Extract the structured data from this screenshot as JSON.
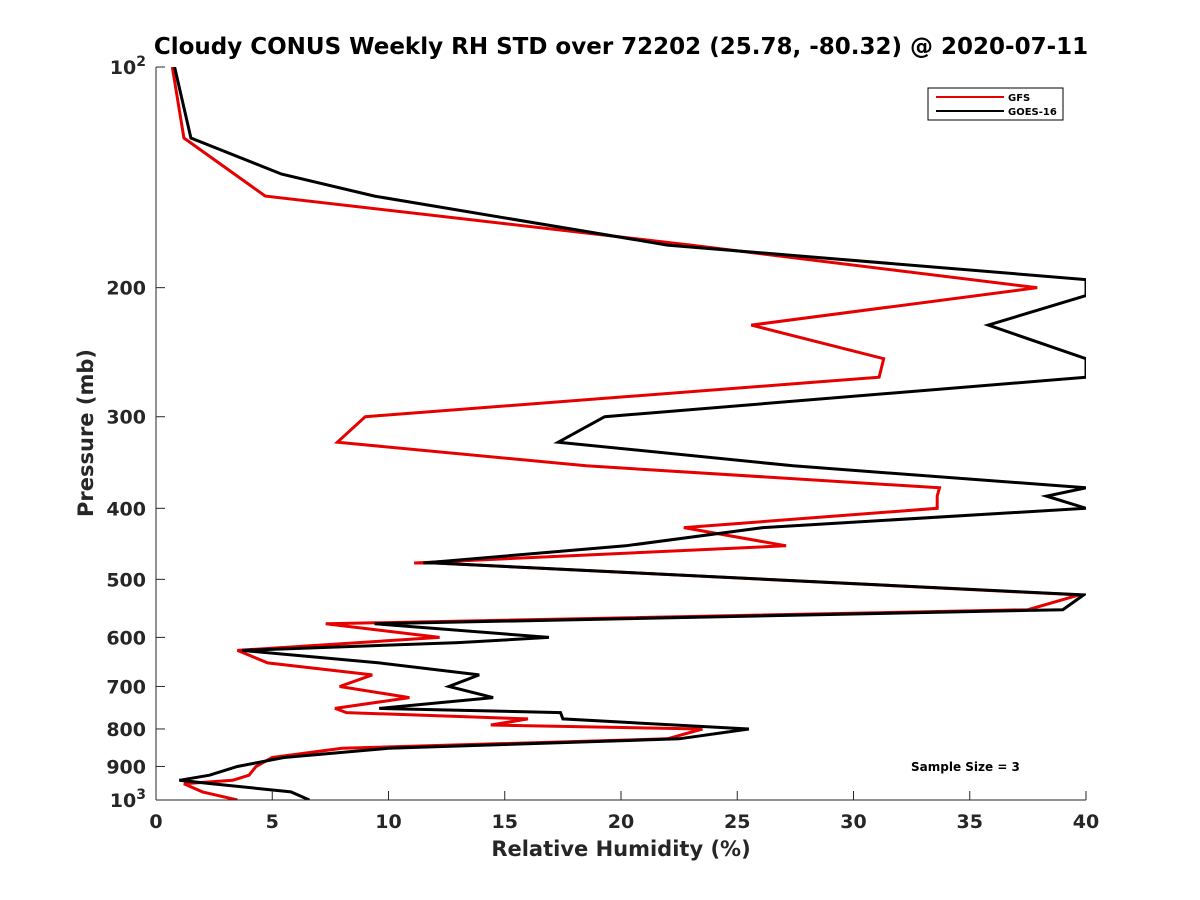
{
  "chart_data": {
    "type": "line",
    "title": "Cloudy CONUS Weekly RH STD over 72202 (25.78, -80.32) @ 2020-07-11",
    "xlabel": "Relative Humidity (%)",
    "ylabel": "Pressure (mb)",
    "xlim": [
      0,
      40
    ],
    "ylim": [
      100,
      1000
    ],
    "y_scale": "log",
    "y_reversed": true,
    "x_ticks": [
      "0",
      "5",
      "10",
      "15",
      "20",
      "25",
      "30",
      "35",
      "40"
    ],
    "y_ticks": [
      {
        "value": 100,
        "base": "10",
        "exp": "2"
      },
      {
        "value": 200,
        "label": "200"
      },
      {
        "value": 300,
        "label": "300"
      },
      {
        "value": 400,
        "label": "400"
      },
      {
        "value": 500,
        "label": "500"
      },
      {
        "value": 600,
        "label": "600"
      },
      {
        "value": 700,
        "label": "700"
      },
      {
        "value": 800,
        "label": "800"
      },
      {
        "value": 900,
        "label": "900"
      },
      {
        "value": 1000,
        "base": "10",
        "exp": "3"
      }
    ],
    "legend_position": "top-right",
    "grid": false,
    "series": [
      {
        "name": "GFS",
        "color": "#e60000",
        "points": [
          [
            0.7,
            100
          ],
          [
            1.2,
            125
          ],
          [
            4.7,
            150
          ],
          [
            23.0,
            175
          ],
          [
            37.9,
            200
          ],
          [
            25.6,
            225
          ],
          [
            31.3,
            250
          ],
          [
            31.1,
            265
          ],
          [
            9.0,
            300
          ],
          [
            7.8,
            325
          ],
          [
            18.5,
            350
          ],
          [
            33.7,
            375
          ],
          [
            33.6,
            385
          ],
          [
            33.6,
            400
          ],
          [
            22.7,
            425
          ],
          [
            27.1,
            450
          ],
          [
            11.1,
            475
          ],
          [
            12.0,
            475
          ],
          [
            39.7,
            525
          ],
          [
            37.5,
            550
          ],
          [
            7.3,
            575
          ],
          [
            12.2,
            600
          ],
          [
            3.5,
            625
          ],
          [
            4.8,
            650
          ],
          [
            9.3,
            675
          ],
          [
            7.9,
            700
          ],
          [
            10.9,
            725
          ],
          [
            7.7,
            750
          ],
          [
            8.2,
            760
          ],
          [
            16.0,
            775
          ],
          [
            14.4,
            790
          ],
          [
            23.5,
            800
          ],
          [
            22.0,
            825
          ],
          [
            8.0,
            850
          ],
          [
            5.0,
            875
          ],
          [
            4.3,
            900
          ],
          [
            4.0,
            925
          ],
          [
            3.3,
            940
          ],
          [
            1.2,
            950
          ],
          [
            2.0,
            975
          ],
          [
            3.5,
            1000
          ]
        ]
      },
      {
        "name": "GOES-16",
        "color": "#000000",
        "points": [
          [
            0.8,
            100
          ],
          [
            1.5,
            125
          ],
          [
            5.4,
            140
          ],
          [
            9.4,
            150
          ],
          [
            22.0,
            175
          ],
          [
            40.0,
            195
          ],
          [
            40.0,
            205
          ],
          [
            35.8,
            225
          ],
          [
            40.0,
            250
          ],
          [
            40.0,
            265
          ],
          [
            19.3,
            300
          ],
          [
            17.3,
            325
          ],
          [
            27.4,
            350
          ],
          [
            40.0,
            375
          ],
          [
            38.3,
            385
          ],
          [
            40.0,
            400
          ],
          [
            26.1,
            425
          ],
          [
            20.2,
            450
          ],
          [
            11.5,
            475
          ],
          [
            12.0,
            475
          ],
          [
            39.9,
            525
          ],
          [
            39.0,
            550
          ],
          [
            9.4,
            575
          ],
          [
            16.9,
            600
          ],
          [
            13.0,
            610
          ],
          [
            3.7,
            625
          ],
          [
            9.6,
            650
          ],
          [
            13.9,
            675
          ],
          [
            12.6,
            700
          ],
          [
            14.5,
            725
          ],
          [
            9.6,
            750
          ],
          [
            17.4,
            760
          ],
          [
            17.5,
            775
          ],
          [
            25.5,
            800
          ],
          [
            22.5,
            825
          ],
          [
            10.0,
            850
          ],
          [
            5.5,
            875
          ],
          [
            3.5,
            900
          ],
          [
            2.3,
            925
          ],
          [
            1.0,
            940
          ],
          [
            2.4,
            950
          ],
          [
            5.8,
            975
          ],
          [
            6.6,
            1000
          ]
        ]
      }
    ],
    "annotation": "Sample Size = 3"
  }
}
